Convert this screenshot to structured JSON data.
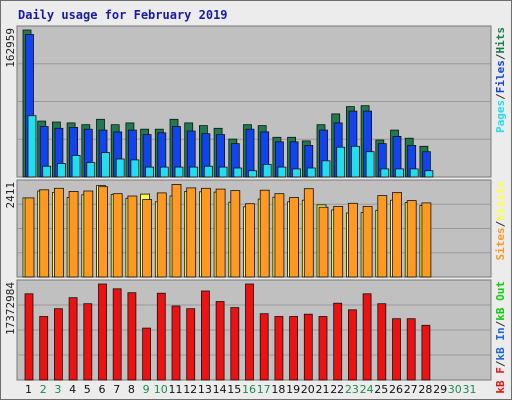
{
  "chart_data": {
    "type": "bar",
    "title": "Daily usage for February 2019",
    "categories": [
      "1",
      "2",
      "3",
      "4",
      "5",
      "6",
      "7",
      "8",
      "9",
      "10",
      "11",
      "12",
      "13",
      "14",
      "15",
      "16",
      "17",
      "18",
      "19",
      "20",
      "21",
      "22",
      "23",
      "24",
      "25",
      "26",
      "27",
      "28",
      "29",
      "30",
      "31"
    ],
    "weekend_days": [
      "2",
      "3",
      "9",
      "10",
      "16",
      "17",
      "23",
      "24",
      "30",
      "31"
    ],
    "colors": {
      "hits": "#1f7a4f",
      "files": "#1144ee",
      "pages": "#22ddee",
      "visits": "#ffff44",
      "sites": "#ff9922",
      "kbin": "#2266dd",
      "kbout": "#11cc11",
      "kbf": "#ee1111",
      "weekday_label": "#111111",
      "weekend_label": "#1f8a4f",
      "panel_bg": "#c0c0c0",
      "title": "#1a1aa6"
    },
    "panels": [
      {
        "id": "hits-files-pages",
        "ymax_label": "162959",
        "ylim": [
          0,
          162959
        ],
        "legend": [
          {
            "text": "Pages",
            "color": "#22ddee"
          },
          {
            "text": "/",
            "color": "#333333"
          },
          {
            "text": "Files",
            "color": "#1144ee"
          },
          {
            "text": "/",
            "color": "#333333"
          },
          {
            "text": "Hits",
            "color": "#1f7a4f"
          }
        ],
        "series": [
          {
            "name": "Hits",
            "color": "#1f7a4f",
            "values": [
              162959,
              62000,
              61000,
              60000,
              58000,
              64000,
              58000,
              60000,
              53000,
              53000,
              64000,
              60000,
              57000,
              54000,
              42000,
              58000,
              57000,
              44000,
              44000,
              40000,
              58000,
              70000,
              78000,
              79000,
              41000,
              52000,
              43000,
              34000,
              0,
              0,
              0
            ]
          },
          {
            "name": "Files",
            "color": "#1144ee",
            "values": [
              158000,
              56000,
              54000,
              55000,
              53000,
              52000,
              50000,
              52000,
              47000,
              49000,
              56000,
              51000,
              48000,
              47000,
              37000,
              53000,
              50000,
              39000,
              39000,
              35000,
              52000,
              60000,
              73000,
              73000,
              37000,
              45000,
              35000,
              28000,
              0,
              0,
              0
            ]
          },
          {
            "name": "Pages",
            "color": "#22ddee",
            "values": [
              68000,
              12000,
              15000,
              24000,
              16000,
              27000,
              20000,
              19000,
              11000,
              11000,
              11000,
              11000,
              12000,
              11000,
              10000,
              7000,
              14000,
              11000,
              9000,
              10000,
              18000,
              33000,
              34000,
              28000,
              9000,
              9000,
              9000,
              7000,
              0,
              0,
              0
            ]
          }
        ]
      },
      {
        "id": "visits-sites",
        "ymax_label": "2411",
        "ylim": [
          0,
          2411
        ],
        "legend": [
          {
            "text": "Sites",
            "color": "#ff9922"
          },
          {
            "text": "/",
            "color": "#333333"
          },
          {
            "text": "Visits",
            "color": "#ffff44"
          }
        ],
        "series": [
          {
            "name": "Visits",
            "color": "#ffff44",
            "values": [
              2050,
              2230,
              2190,
              2060,
              2130,
              2370,
              2140,
              2040,
              2150,
              1950,
              2100,
              2220,
              2210,
              2200,
              1940,
              1820,
              2020,
              2070,
              1950,
              1990,
              1870,
              1740,
              1660,
              1670,
              1730,
              1990,
              1930,
              1850,
              0,
              0,
              0
            ]
          },
          {
            "name": "Sites",
            "color": "#ff9922",
            "values": [
              2050,
              2260,
              2300,
              2220,
              2230,
              2340,
              2160,
              2100,
              2010,
              2180,
              2400,
              2310,
              2300,
              2280,
              2240,
              1900,
              2250,
              2160,
              2060,
              2290,
              1810,
              1830,
              1910,
              1830,
              2110,
              2190,
              1980,
              1920,
              0,
              0,
              0
            ]
          }
        ]
      },
      {
        "id": "kbf-kbin-kbout",
        "ymax_label": "17372984",
        "ylim": [
          0,
          17372984
        ],
        "legend": [
          {
            "text": "kB F",
            "color": "#ee1111"
          },
          {
            "text": "/",
            "color": "#333333"
          },
          {
            "text": "kB In",
            "color": "#2266dd"
          },
          {
            "text": "/",
            "color": "#333333"
          },
          {
            "text": "kB Out",
            "color": "#11cc11"
          }
        ],
        "series": [
          {
            "name": "kB F",
            "color": "#ee1111",
            "values": [
              15600000,
              11500000,
              12900000,
              14900000,
              13800000,
              17372984,
              16500000,
              15800000,
              9400000,
              15700000,
              13400000,
              12900000,
              16100000,
              14200000,
              13100000,
              17372984,
              12000000,
              11500000,
              11500000,
              11900000,
              11500000,
              13900000,
              12700000,
              15600000,
              13800000,
              11100000,
              11100000,
              9900000,
              0,
              0,
              0
            ]
          }
        ]
      }
    ]
  }
}
